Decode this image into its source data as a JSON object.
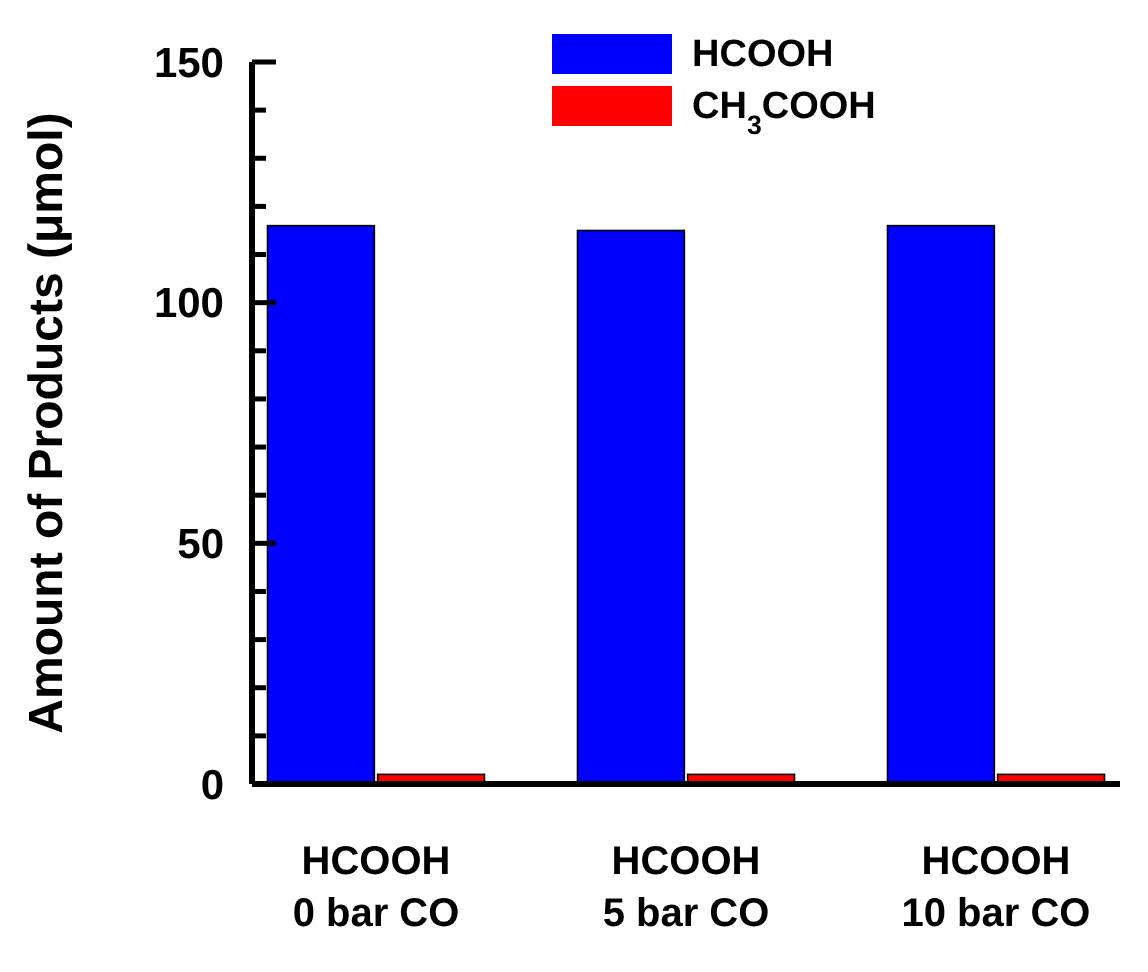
{
  "chart_data": {
    "type": "bar",
    "ylabel": "Amount of Products (μmol)",
    "categories": [
      "HCOOH\n0 bar CO",
      "HCOOH\n5 bar CO",
      "HCOOH\n10 bar CO"
    ],
    "series": [
      {
        "name": "HCOOH",
        "color": "#0000ff",
        "values": [
          116,
          115,
          116
        ]
      },
      {
        "name": "CH$_{3}$COOH",
        "color": "#ff0000",
        "values": [
          2,
          2,
          2
        ]
      }
    ],
    "ylim": [
      0,
      150
    ],
    "yticks": [
      0,
      {
        "value": 10,
        "label": null
      },
      {
        "value": 20,
        "label": null
      },
      {
        "value": 30,
        "label": null
      },
      {
        "value": 40,
        "label": null
      },
      50,
      {
        "value": 60,
        "label": null
      },
      {
        "value": 70,
        "label": null
      },
      {
        "value": 80,
        "label": null
      },
      {
        "value": 90,
        "label": null
      },
      100,
      {
        "value": 110,
        "label": null
      },
      {
        "value": 120,
        "label": null
      },
      {
        "value": 130,
        "label": null
      },
      {
        "value": 140,
        "label": null
      },
      150
    ],
    "grid": false,
    "legend": "top"
  }
}
